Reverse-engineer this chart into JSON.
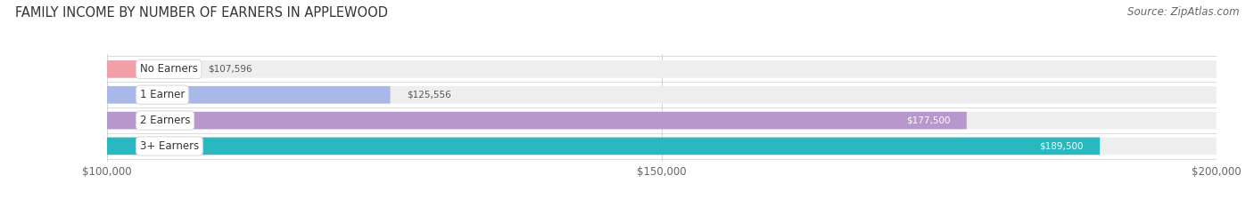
{
  "title": "FAMILY INCOME BY NUMBER OF EARNERS IN APPLEWOOD",
  "source": "Source: ZipAtlas.com",
  "categories": [
    "No Earners",
    "1 Earner",
    "2 Earners",
    "3+ Earners"
  ],
  "values": [
    107596,
    125556,
    177500,
    189500
  ],
  "bar_colors": [
    "#f2a0a8",
    "#a8b8e8",
    "#b898cc",
    "#2ab8c0"
  ],
  "value_labels": [
    "$107,596",
    "$125,556",
    "$177,500",
    "$189,500"
  ],
  "value_label_colors": [
    "#555555",
    "#555555",
    "#ffffff",
    "#ffffff"
  ],
  "xmin": 100000,
  "xmax": 200000,
  "xticks": [
    100000,
    150000,
    200000
  ],
  "xtick_labels": [
    "$100,000",
    "$150,000",
    "$200,000"
  ],
  "figure_bg": "#ffffff",
  "bar_bg_color": "#eeeeee",
  "title_fontsize": 10.5,
  "source_fontsize": 8.5,
  "bar_height": 0.68,
  "bar_label_fontsize": 8.5,
  "value_fontsize": 7.5,
  "axis_label_fontsize": 8.5
}
